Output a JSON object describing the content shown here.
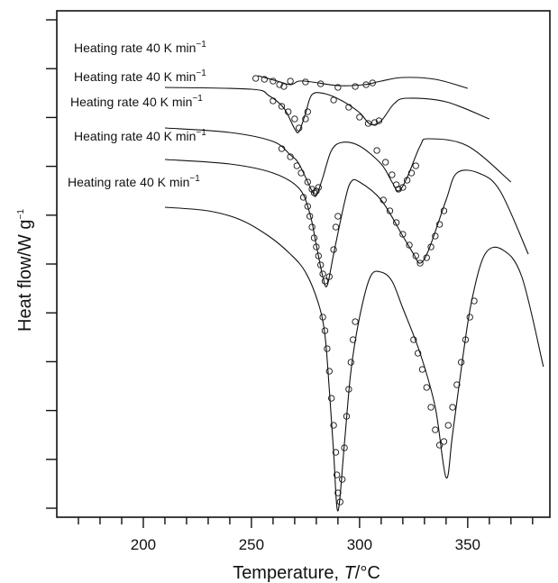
{
  "chart_data": {
    "type": "line",
    "xlabel_text": "Temperature, ",
    "xlabel_symbol": "T",
    "xlabel_unit": "/°C",
    "ylabel_text": "Heat flow/W g",
    "ylabel_sup": "−1",
    "xlim": [
      160,
      388
    ],
    "xticks": [
      200,
      250,
      300,
      350
    ],
    "yticks_count": 11,
    "grid": false,
    "legend": "none",
    "line_color": "#111111",
    "marker": "open-circle",
    "series": [
      {
        "label_text": "Heating rate 40 K min",
        "label_sup": "−1",
        "line": [
          [
            253,
            72
          ],
          [
            262,
            78
          ],
          [
            268,
            82
          ],
          [
            272,
            78
          ],
          [
            278,
            79
          ],
          [
            290,
            83
          ],
          [
            302,
            82
          ],
          [
            310,
            78
          ],
          [
            320,
            74
          ],
          [
            335,
            76
          ],
          [
            350,
            86
          ]
        ],
        "points": [
          [
            252,
            75
          ],
          [
            256,
            76
          ],
          [
            260,
            78
          ],
          [
            263,
            82
          ],
          [
            265,
            84
          ],
          [
            268,
            78
          ],
          [
            275,
            79
          ],
          [
            282,
            81
          ],
          [
            290,
            85
          ],
          [
            298,
            84
          ],
          [
            303,
            82
          ],
          [
            306,
            80
          ]
        ]
      },
      {
        "label_text": "Heating rate 40 K min",
        "label_sup": "−1",
        "line": [
          [
            210,
            85
          ],
          [
            250,
            87
          ],
          [
            258,
            94
          ],
          [
            265,
            108
          ],
          [
            270,
            131
          ],
          [
            272,
            134
          ],
          [
            275,
            114
          ],
          [
            278,
            93
          ],
          [
            284,
            92
          ],
          [
            292,
            100
          ],
          [
            300,
            113
          ],
          [
            305,
            126
          ],
          [
            310,
            122
          ],
          [
            316,
            103
          ],
          [
            322,
            97
          ],
          [
            340,
            101
          ],
          [
            360,
            120
          ]
        ],
        "points": [
          [
            260,
            100
          ],
          [
            264,
            106
          ],
          [
            267,
            112
          ],
          [
            270,
            120
          ],
          [
            272,
            130
          ],
          [
            275,
            120
          ],
          [
            276,
            112
          ],
          [
            288,
            99
          ],
          [
            295,
            107
          ],
          [
            300,
            118
          ],
          [
            304,
            125
          ],
          [
            307,
            124
          ],
          [
            309,
            122
          ]
        ]
      },
      {
        "label_text": "Heating rate 40 K min",
        "label_sup": "−1",
        "line": [
          [
            210,
            130
          ],
          [
            240,
            135
          ],
          [
            260,
            145
          ],
          [
            268,
            160
          ],
          [
            272,
            170
          ],
          [
            278,
            200
          ],
          [
            280,
            205
          ],
          [
            283,
            185
          ],
          [
            287,
            155
          ],
          [
            292,
            146
          ],
          [
            300,
            150
          ],
          [
            310,
            170
          ],
          [
            315,
            190
          ],
          [
            318,
            200
          ],
          [
            322,
            185
          ],
          [
            328,
            150
          ],
          [
            332,
            142
          ],
          [
            350,
            150
          ],
          [
            370,
            190
          ]
        ],
        "points": [
          [
            264,
            153
          ],
          [
            268,
            162
          ],
          [
            271,
            172
          ],
          [
            273,
            180
          ],
          [
            276,
            190
          ],
          [
            278,
            198
          ],
          [
            279,
            202
          ],
          [
            280,
            200
          ],
          [
            281,
            196
          ],
          [
            308,
            155
          ],
          [
            312,
            168
          ],
          [
            315,
            182
          ],
          [
            317,
            193
          ],
          [
            318,
            198
          ],
          [
            320,
            196
          ],
          [
            322,
            188
          ],
          [
            324,
            180
          ],
          [
            326,
            172
          ]
        ]
      },
      {
        "label_text": "Heating rate 40 K min",
        "label_sup": "−1",
        "line": [
          [
            210,
            165
          ],
          [
            240,
            170
          ],
          [
            260,
            180
          ],
          [
            272,
            197
          ],
          [
            277,
            225
          ],
          [
            280,
            260
          ],
          [
            283,
            295
          ],
          [
            285,
            305
          ],
          [
            288,
            270
          ],
          [
            293,
            213
          ],
          [
            296,
            190
          ],
          [
            300,
            190
          ],
          [
            310,
            210
          ],
          [
            320,
            250
          ],
          [
            325,
            270
          ],
          [
            328,
            280
          ],
          [
            332,
            265
          ],
          [
            340,
            210
          ],
          [
            345,
            180
          ],
          [
            355,
            180
          ],
          [
            365,
            200
          ],
          [
            378,
            270
          ]
        ],
        "points": [
          [
            274,
            207
          ],
          [
            276,
            217
          ],
          [
            277,
            228
          ],
          [
            278,
            240
          ],
          [
            279,
            252
          ],
          [
            280,
            262
          ],
          [
            281,
            272
          ],
          [
            282,
            282
          ],
          [
            283,
            292
          ],
          [
            284,
            300
          ],
          [
            286,
            295
          ],
          [
            288,
            265
          ],
          [
            289,
            240
          ],
          [
            290,
            228
          ],
          [
            311,
            210
          ],
          [
            314,
            222
          ],
          [
            317,
            235
          ],
          [
            320,
            248
          ],
          [
            323,
            260
          ],
          [
            326,
            272
          ],
          [
            328,
            280
          ],
          [
            331,
            274
          ],
          [
            333,
            262
          ],
          [
            335,
            250
          ],
          [
            337,
            237
          ],
          [
            339,
            222
          ]
        ]
      },
      {
        "label_text": "Heating rate 40 K min",
        "label_sup": "−1",
        "line": [
          [
            210,
            218
          ],
          [
            230,
            222
          ],
          [
            245,
            232
          ],
          [
            258,
            250
          ],
          [
            268,
            270
          ],
          [
            275,
            290
          ],
          [
            281,
            325
          ],
          [
            284,
            360
          ],
          [
            286,
            420
          ],
          [
            288,
            490
          ],
          [
            290,
            555
          ],
          [
            293,
            480
          ],
          [
            296,
            400
          ],
          [
            300,
            340
          ],
          [
            305,
            295
          ],
          [
            310,
            290
          ],
          [
            315,
            300
          ],
          [
            320,
            330
          ],
          [
            328,
            380
          ],
          [
            335,
            440
          ],
          [
            340,
            518
          ],
          [
            343,
            470
          ],
          [
            348,
            380
          ],
          [
            352,
            320
          ],
          [
            358,
            270
          ],
          [
            366,
            265
          ],
          [
            375,
            295
          ],
          [
            385,
            395
          ]
        ],
        "points": [
          [
            283,
            340
          ],
          [
            284,
            355
          ],
          [
            285,
            375
          ],
          [
            286,
            400
          ],
          [
            287,
            430
          ],
          [
            288,
            460
          ],
          [
            289,
            490
          ],
          [
            289.5,
            515
          ],
          [
            290,
            535
          ],
          [
            291,
            545
          ],
          [
            292,
            520
          ],
          [
            293,
            485
          ],
          [
            294,
            450
          ],
          [
            295,
            420
          ],
          [
            296,
            390
          ],
          [
            297,
            365
          ],
          [
            298,
            345
          ],
          [
            325,
            365
          ],
          [
            327,
            380
          ],
          [
            329,
            398
          ],
          [
            331,
            418
          ],
          [
            333,
            440
          ],
          [
            335,
            465
          ],
          [
            337,
            482
          ],
          [
            339,
            478
          ],
          [
            341,
            460
          ],
          [
            343,
            440
          ],
          [
            345,
            415
          ],
          [
            347,
            390
          ],
          [
            349,
            365
          ],
          [
            351,
            340
          ],
          [
            353,
            322
          ]
        ]
      }
    ]
  }
}
